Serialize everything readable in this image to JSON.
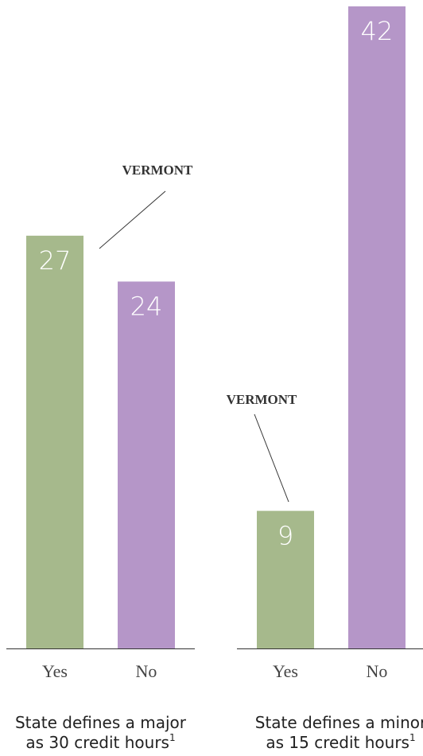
{
  "chart_data": [
    {
      "type": "bar",
      "categories": [
        "Yes",
        "No"
      ],
      "values": [
        27,
        24
      ],
      "colors": [
        "#a6b98c",
        "#b596c8"
      ],
      "ylim": [
        0,
        42
      ],
      "title": [
        "State defines a major",
        "as 30 credit hours"
      ],
      "title_footnote": "1",
      "annotation": {
        "text": "VERMONT",
        "category_index": 0
      }
    },
    {
      "type": "bar",
      "categories": [
        "Yes",
        "No"
      ],
      "values": [
        9,
        42
      ],
      "colors": [
        "#a6b98c",
        "#b596c8"
      ],
      "ylim": [
        0,
        42
      ],
      "title": [
        "State defines a minor",
        "as 15 credit hours"
      ],
      "title_footnote": "1",
      "annotation": {
        "text": "VERMONT",
        "category_index": 0
      }
    }
  ]
}
